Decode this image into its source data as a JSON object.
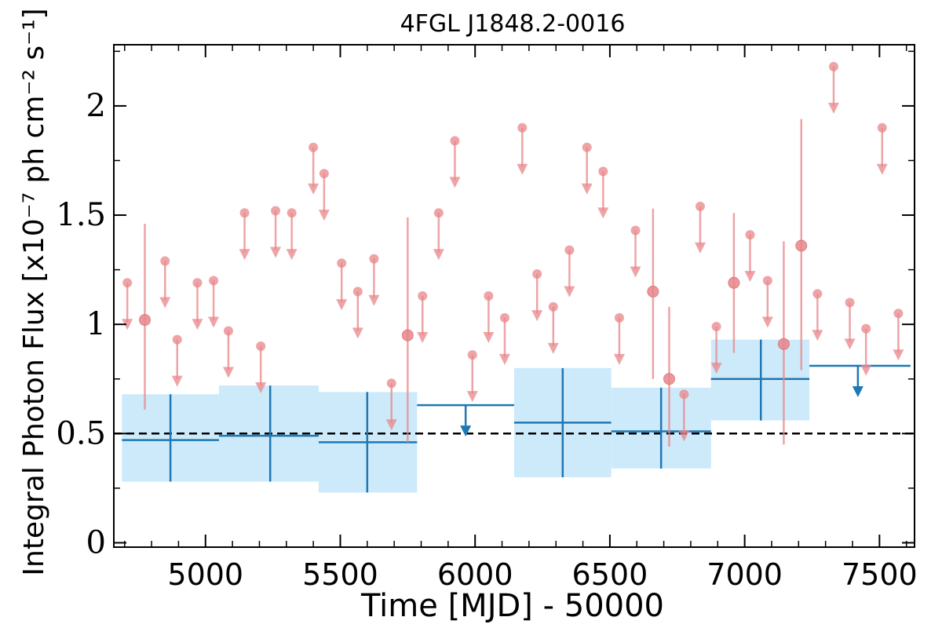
{
  "chart_data": {
    "type": "scatter",
    "title": "4FGL J1848.2-0016",
    "xlabel": "Time [MJD] - 50000",
    "ylabel": "Integral Photon Flux [x10⁻⁷ ph cm⁻² s⁻¹]",
    "xlim": [
      4660,
      7630
    ],
    "ylim": [
      -0.02,
      2.28
    ],
    "xticks": [
      5000,
      5500,
      6000,
      6500,
      7000,
      7500
    ],
    "xtick_labels": [
      "5000",
      "5500",
      "6000",
      "6500",
      "7000",
      "7500"
    ],
    "yticks": [
      0,
      0.5,
      1,
      1.5,
      2
    ],
    "ytick_labels": [
      "0",
      "0.5",
      "1",
      "1.5",
      "2"
    ],
    "reference_line": 0.5,
    "colors": {
      "fine": "#e8868a",
      "coarse": "#1f77b4",
      "band": "#cdeafa",
      "reference": "#000000"
    },
    "fine_upper_limits": {
      "x": [
        4710,
        4850,
        4895,
        4970,
        5030,
        5085,
        5145,
        5205,
        5260,
        5320,
        5400,
        5440,
        5505,
        5565,
        5625,
        5690,
        5805,
        5865,
        5925,
        5990,
        6050,
        6110,
        6175,
        6230,
        6290,
        6350,
        6415,
        6475,
        6535,
        6595,
        6775,
        6835,
        6895,
        7020,
        7085,
        7270,
        7330,
        7390,
        7450,
        7510,
        7570
      ],
      "y": [
        1.19,
        1.29,
        0.93,
        1.19,
        1.2,
        0.97,
        1.51,
        0.9,
        1.52,
        1.51,
        1.81,
        1.69,
        1.28,
        1.15,
        1.3,
        0.73,
        1.13,
        1.51,
        1.84,
        0.86,
        1.13,
        1.03,
        1.9,
        1.23,
        1.08,
        1.34,
        1.81,
        1.7,
        1.03,
        1.43,
        0.68,
        1.54,
        0.99,
        1.41,
        1.2,
        1.14,
        2.18,
        1.1,
        0.98,
        1.9,
        1.05
      ]
    },
    "fine_detections": {
      "x": [
        4775,
        5750,
        6660,
        6720,
        6960,
        7145,
        7210
      ],
      "y": [
        1.02,
        0.95,
        1.15,
        0.75,
        1.19,
        0.91,
        1.36
      ],
      "y_low": [
        0.61,
        0.46,
        0.75,
        0.44,
        0.87,
        0.45,
        0.79
      ],
      "y_high": [
        1.46,
        1.49,
        1.53,
        1.08,
        1.51,
        1.38,
        1.94
      ]
    },
    "coarse_detections": {
      "x": [
        4870,
        5240,
        5600,
        6325,
        6690,
        7060
      ],
      "x_low": [
        4690,
        5050,
        5420,
        6145,
        6505,
        6875
      ],
      "x_high": [
        5050,
        5420,
        5785,
        6505,
        6875,
        7240
      ],
      "y": [
        0.47,
        0.49,
        0.46,
        0.55,
        0.51,
        0.75
      ],
      "y_low": [
        0.28,
        0.28,
        0.23,
        0.3,
        0.34,
        0.56
      ],
      "y_high": [
        0.68,
        0.72,
        0.69,
        0.8,
        0.71,
        0.93
      ]
    },
    "coarse_upper_limits": {
      "x": [
        5965,
        7420
      ],
      "x_low": [
        5785,
        7240
      ],
      "x_high": [
        6145,
        7615
      ],
      "y": [
        0.63,
        0.81
      ]
    }
  }
}
